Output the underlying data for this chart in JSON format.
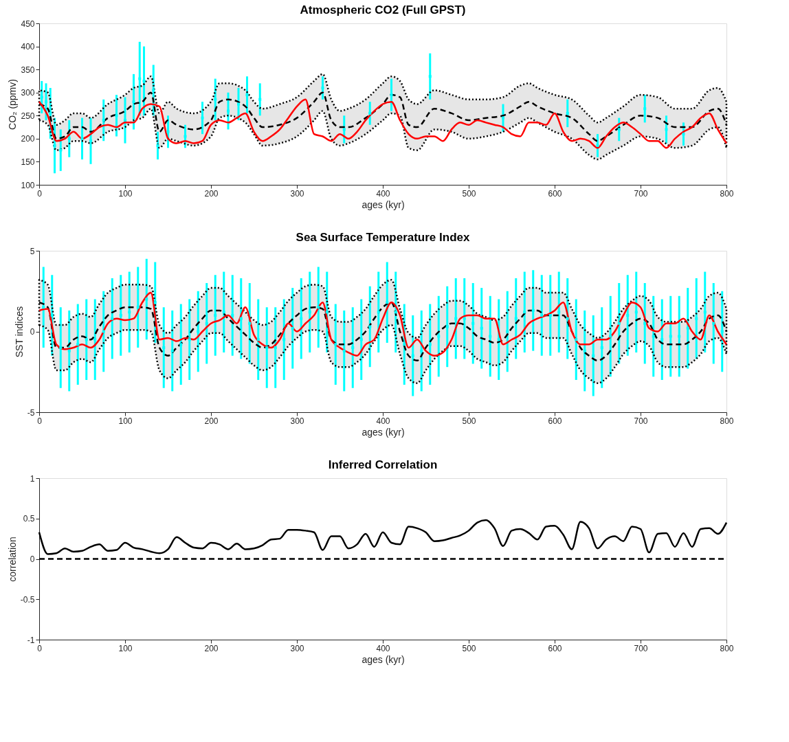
{
  "chart_data": [
    {
      "type": "line",
      "title": "Atmospheric CO2 (Full GPST)",
      "xlabel": "ages (kyr)",
      "ylabel": "CO₂ (ppmv)",
      "xlim": [
        0,
        800
      ],
      "xticks": [
        0,
        100,
        200,
        300,
        400,
        500,
        600,
        700,
        800
      ],
      "ylim": [
        100,
        450
      ],
      "yticks": [
        100,
        150,
        200,
        250,
        300,
        350,
        400,
        450
      ],
      "grid": false,
      "x": [
        0,
        10,
        20,
        30,
        40,
        50,
        60,
        70,
        80,
        90,
        100,
        110,
        120,
        130,
        140,
        150,
        160,
        170,
        180,
        190,
        200,
        210,
        220,
        230,
        240,
        250,
        260,
        270,
        280,
        290,
        300,
        310,
        320,
        330,
        340,
        350,
        360,
        370,
        380,
        390,
        400,
        410,
        420,
        430,
        440,
        450,
        460,
        470,
        480,
        490,
        500,
        510,
        520,
        530,
        540,
        550,
        560,
        570,
        580,
        590,
        600,
        610,
        620,
        630,
        640,
        650,
        660,
        670,
        680,
        690,
        700,
        710,
        720,
        730,
        740,
        750,
        760,
        770,
        780,
        790,
        800
      ],
      "series": [
        {
          "type": "line",
          "color": "#000000",
          "line_style": "dashed",
          "x": [
            0,
            10,
            20,
            30,
            40,
            50,
            60,
            80,
            100,
            110,
            120,
            130,
            140,
            150,
            160,
            180,
            200,
            210,
            220,
            240,
            250,
            260,
            280,
            300,
            320,
            330,
            340,
            350,
            360,
            380,
            400,
            410,
            420,
            430,
            440,
            460,
            480,
            500,
            520,
            540,
            560,
            570,
            580,
            600,
            620,
            640,
            650,
            660,
            680,
            700,
            720,
            740,
            760,
            780,
            790,
            800
          ],
          "values": [
            275,
            265,
            200,
            205,
            225,
            225,
            215,
            245,
            260,
            275,
            280,
            300,
            215,
            240,
            230,
            220,
            240,
            280,
            285,
            270,
            245,
            225,
            230,
            245,
            280,
            300,
            240,
            225,
            225,
            245,
            275,
            295,
            290,
            230,
            225,
            265,
            255,
            240,
            245,
            250,
            270,
            280,
            270,
            255,
            245,
            210,
            195,
            205,
            230,
            250,
            245,
            225,
            225,
            260,
            265,
            230
          ],
          "lower": [
            240,
            230,
            175,
            180,
            195,
            195,
            190,
            215,
            225,
            240,
            245,
            265,
            180,
            200,
            195,
            185,
            205,
            245,
            250,
            235,
            210,
            185,
            190,
            205,
            240,
            260,
            200,
            185,
            190,
            210,
            240,
            255,
            250,
            180,
            175,
            220,
            215,
            200,
            205,
            215,
            235,
            245,
            235,
            215,
            200,
            165,
            155,
            165,
            185,
            205,
            200,
            180,
            185,
            220,
            225,
            180
          ],
          "upper": [
            305,
            300,
            230,
            240,
            255,
            255,
            245,
            275,
            295,
            310,
            315,
            335,
            255,
            280,
            265,
            255,
            280,
            320,
            320,
            305,
            280,
            265,
            275,
            290,
            325,
            340,
            285,
            260,
            265,
            285,
            320,
            335,
            325,
            285,
            275,
            305,
            295,
            285,
            285,
            290,
            315,
            320,
            310,
            295,
            285,
            250,
            235,
            245,
            270,
            295,
            290,
            265,
            265,
            305,
            310,
            280
          ]
        },
        {
          "type": "line",
          "color": "#ff0000",
          "line_style": "solid",
          "values": [
            280,
            250,
            195,
            200,
            215,
            200,
            210,
            225,
            230,
            225,
            235,
            235,
            265,
            275,
            270,
            200,
            190,
            195,
            190,
            195,
            230,
            240,
            235,
            245,
            255,
            215,
            195,
            205,
            220,
            245,
            270,
            285,
            210,
            205,
            195,
            210,
            200,
            215,
            240,
            260,
            275,
            280,
            240,
            210,
            200,
            205,
            205,
            195,
            220,
            235,
            230,
            240,
            235,
            230,
            225,
            210,
            205,
            235,
            235,
            230,
            255,
            215,
            195,
            200,
            195,
            180,
            205,
            225,
            235,
            225,
            210,
            195,
            195,
            180,
            200,
            215,
            225,
            245,
            255,
            220,
            190
          ]
        },
        {
          "type": "scatter",
          "color": "#00ffff",
          "marker": "square",
          "x": [
            3,
            8,
            13,
            18,
            25,
            35,
            50,
            60,
            75,
            90,
            100,
            110,
            117,
            122,
            133,
            138,
            150,
            170,
            190,
            205,
            220,
            232,
            242,
            257,
            330,
            355,
            385,
            410,
            455,
            540,
            615,
            650,
            675,
            705,
            730,
            750
          ],
          "values": [
            290,
            280,
            255,
            185,
            175,
            200,
            200,
            195,
            240,
            250,
            240,
            280,
            330,
            325,
            305,
            185,
            215,
            205,
            245,
            285,
            260,
            275,
            295,
            285,
            310,
            220,
            255,
            295,
            335,
            245,
            255,
            185,
            220,
            265,
            220,
            210
          ],
          "errors": [
            35,
            40,
            55,
            60,
            45,
            40,
            45,
            50,
            45,
            45,
            50,
            60,
            80,
            75,
            55,
            30,
            35,
            25,
            35,
            45,
            40,
            35,
            40,
            35,
            25,
            30,
            25,
            35,
            50,
            30,
            30,
            25,
            25,
            30,
            30,
            25
          ]
        }
      ]
    },
    {
      "type": "line",
      "title": "Sea Surface Temperature Index",
      "xlabel": "ages (kyr)",
      "ylabel": "SST indices",
      "xlim": [
        0,
        800
      ],
      "xticks": [
        0,
        100,
        200,
        300,
        400,
        500,
        600,
        700,
        800
      ],
      "ylim": [
        -5,
        5
      ],
      "yticks": [
        -5,
        0,
        5
      ],
      "grid": false,
      "x": [
        0,
        10,
        20,
        30,
        40,
        50,
        60,
        70,
        80,
        90,
        100,
        110,
        120,
        130,
        140,
        150,
        160,
        170,
        180,
        190,
        200,
        210,
        220,
        230,
        240,
        250,
        260,
        270,
        280,
        290,
        300,
        310,
        320,
        330,
        340,
        350,
        360,
        370,
        380,
        390,
        400,
        410,
        420,
        430,
        440,
        450,
        460,
        470,
        480,
        490,
        500,
        510,
        520,
        530,
        540,
        550,
        560,
        570,
        580,
        590,
        600,
        610,
        620,
        630,
        640,
        650,
        660,
        670,
        680,
        690,
        700,
        710,
        720,
        730,
        740,
        750,
        760,
        770,
        780,
        790,
        800
      ],
      "series": [
        {
          "type": "line",
          "color": "#000000",
          "line_style": "dashed",
          "values": [
            1.8,
            1.5,
            -1.0,
            -1.0,
            -0.5,
            -0.3,
            -0.5,
            0.3,
            1.0,
            1.3,
            1.5,
            1.5,
            1.5,
            1.4,
            -1.0,
            -1.5,
            -1.0,
            -0.5,
            0.2,
            0.8,
            1.3,
            1.3,
            0.8,
            0.3,
            -0.2,
            -0.7,
            -1.0,
            -0.8,
            -0.2,
            0.5,
            1.0,
            1.4,
            1.5,
            1.4,
            -0.5,
            -0.8,
            -0.8,
            -0.5,
            0.0,
            0.8,
            1.5,
            1.8,
            0.0,
            -1.5,
            -1.8,
            -1.0,
            -0.3,
            0.2,
            0.5,
            0.5,
            0.2,
            -0.3,
            -0.5,
            -0.7,
            -0.5,
            0.2,
            0.8,
            1.3,
            1.3,
            1.0,
            1.0,
            1.0,
            0.0,
            -1.0,
            -1.5,
            -1.8,
            -1.5,
            -0.8,
            0.0,
            0.5,
            0.8,
            0.5,
            -0.5,
            -0.8,
            -0.8,
            -0.8,
            -0.5,
            0.0,
            0.8,
            1.0,
            0.0
          ],
          "lower": [
            0.4,
            0.1,
            -2.4,
            -2.4,
            -1.9,
            -1.7,
            -1.9,
            -1.1,
            -0.4,
            -0.1,
            0.1,
            0.1,
            0.1,
            0.0,
            -2.4,
            -2.9,
            -2.4,
            -1.9,
            -1.2,
            -0.6,
            -0.1,
            -0.1,
            -0.6,
            -1.1,
            -1.6,
            -2.1,
            -2.4,
            -2.2,
            -1.6,
            -0.9,
            -0.4,
            0.0,
            0.1,
            0.0,
            -1.9,
            -2.2,
            -2.2,
            -1.9,
            -1.4,
            -0.6,
            0.1,
            0.4,
            -1.4,
            -2.9,
            -3.2,
            -2.4,
            -1.7,
            -1.2,
            -0.9,
            -0.9,
            -1.2,
            -1.7,
            -1.9,
            -2.1,
            -1.9,
            -1.2,
            -0.6,
            -0.1,
            -0.1,
            -0.4,
            -0.4,
            -0.4,
            -1.4,
            -2.4,
            -2.9,
            -3.2,
            -2.9,
            -2.2,
            -1.4,
            -0.9,
            -0.6,
            -0.9,
            -1.9,
            -2.2,
            -2.2,
            -2.2,
            -1.9,
            -1.4,
            -0.6,
            -0.4,
            -1.4
          ],
          "upper": [
            3.2,
            2.9,
            0.4,
            0.4,
            0.9,
            1.1,
            0.9,
            1.7,
            2.4,
            2.7,
            2.9,
            2.9,
            2.9,
            2.8,
            0.4,
            -0.1,
            0.4,
            0.9,
            1.6,
            2.2,
            2.7,
            2.7,
            2.2,
            1.7,
            1.2,
            0.7,
            0.4,
            0.6,
            1.2,
            1.9,
            2.4,
            2.8,
            2.9,
            2.8,
            0.9,
            0.6,
            0.6,
            0.9,
            1.4,
            2.2,
            2.9,
            3.2,
            1.4,
            -0.1,
            -0.4,
            0.4,
            1.1,
            1.6,
            1.9,
            1.9,
            1.6,
            1.1,
            0.9,
            0.7,
            0.9,
            1.6,
            2.2,
            2.7,
            2.7,
            2.4,
            2.4,
            2.4,
            1.4,
            0.4,
            -0.1,
            -0.4,
            -0.1,
            0.6,
            1.4,
            1.9,
            2.2,
            1.9,
            0.9,
            0.6,
            0.6,
            0.6,
            0.9,
            1.4,
            2.2,
            2.4,
            1.4
          ]
        },
        {
          "type": "line",
          "color": "#ff0000",
          "line_style": "solid",
          "values": [
            1.3,
            1.4,
            -0.8,
            -1.1,
            -1.0,
            -0.8,
            -1.0,
            -0.5,
            0.5,
            0.8,
            0.7,
            0.8,
            1.8,
            2.4,
            -0.5,
            -0.4,
            -0.6,
            -0.4,
            -0.5,
            0.0,
            0.5,
            0.7,
            1.0,
            0.5,
            1.5,
            -0.2,
            -0.8,
            -1.0,
            -0.5,
            0.5,
            0.0,
            0.5,
            1.0,
            1.8,
            -0.5,
            -1.0,
            -1.3,
            -1.5,
            -0.8,
            -0.5,
            0.8,
            1.8,
            1.0,
            -1.0,
            -0.5,
            -1.2,
            -1.5,
            -1.3,
            -0.5,
            0.8,
            1.0,
            1.0,
            0.8,
            0.8,
            -0.8,
            -0.5,
            -0.2,
            0.5,
            0.8,
            1.0,
            1.3,
            1.8,
            0.0,
            -0.8,
            -0.8,
            -0.5,
            -0.5,
            0.0,
            1.0,
            1.8,
            1.5,
            0.2,
            0.0,
            0.5,
            0.5,
            0.8,
            0.0,
            -0.5,
            1.0,
            0.0,
            -0.8
          ]
        },
        {
          "type": "scatter",
          "color": "#00ffff",
          "marker": "square",
          "x": [
            5,
            15,
            25,
            35,
            45,
            55,
            65,
            75,
            85,
            95,
            105,
            115,
            125,
            135,
            145,
            155,
            165,
            175,
            185,
            195,
            205,
            215,
            225,
            235,
            245,
            255,
            265,
            275,
            285,
            295,
            305,
            315,
            325,
            335,
            345,
            355,
            365,
            375,
            385,
            395,
            405,
            415,
            425,
            435,
            445,
            455,
            465,
            475,
            485,
            495,
            505,
            515,
            525,
            535,
            545,
            555,
            565,
            575,
            585,
            595,
            605,
            615,
            625,
            635,
            645,
            655,
            665,
            675,
            685,
            695,
            705,
            715,
            725,
            735,
            745,
            755,
            765,
            775,
            785,
            795
          ],
          "values": [
            1.5,
            1.0,
            -1.0,
            -1.2,
            -0.8,
            -0.5,
            -0.5,
            0.0,
            0.8,
            1.0,
            1.2,
            1.5,
            2.0,
            1.8,
            -1.0,
            -1.2,
            -0.8,
            -0.5,
            0.0,
            0.5,
            1.0,
            1.2,
            1.0,
            0.8,
            0.5,
            -0.5,
            -1.0,
            -1.0,
            -0.5,
            0.2,
            0.8,
            1.2,
            1.5,
            1.2,
            -0.8,
            -1.2,
            -1.0,
            -0.5,
            0.3,
            1.2,
            1.8,
            1.2,
            -0.8,
            -1.5,
            -1.2,
            -0.8,
            -0.3,
            0.3,
            0.8,
            0.8,
            0.5,
            0.2,
            -0.3,
            -0.5,
            0.0,
            0.8,
            1.2,
            1.3,
            1.0,
            1.0,
            1.2,
            0.8,
            -0.5,
            -1.2,
            -1.5,
            -1.0,
            -0.3,
            0.5,
            1.0,
            1.2,
            0.5,
            -0.3,
            -0.5,
            -0.3,
            -0.3,
            0.2,
            0.8,
            1.2,
            0.5,
            0.0
          ],
          "errors": [
            2.5,
            2.5,
            2.5,
            2.5,
            2.5,
            2.5,
            2.5,
            2.5,
            2.5,
            2.5,
            2.5,
            2.5,
            2.5,
            2.5,
            2.5,
            2.5,
            2.5,
            2.5,
            2.5,
            2.5,
            2.5,
            2.5,
            2.5,
            2.5,
            2.5,
            2.5,
            2.5,
            2.5,
            2.5,
            2.5,
            2.5,
            2.5,
            2.5,
            2.5,
            2.5,
            2.5,
            2.5,
            2.5,
            2.5,
            2.5,
            2.5,
            2.5,
            2.5,
            2.5,
            2.5,
            2.5,
            2.5,
            2.5,
            2.5,
            2.5,
            2.5,
            2.5,
            2.5,
            2.5,
            2.5,
            2.5,
            2.5,
            2.5,
            2.5,
            2.5,
            2.5,
            2.5,
            2.5,
            2.5,
            2.5,
            2.5,
            2.5,
            2.5,
            2.5,
            2.5,
            2.5,
            2.5,
            2.5,
            2.5,
            2.5,
            2.5,
            2.5,
            2.5,
            2.5,
            2.5
          ]
        }
      ]
    },
    {
      "type": "line",
      "title": "Inferred Correlation",
      "xlabel": "ages (kyr)",
      "ylabel": "correlation",
      "xlim": [
        0,
        800
      ],
      "xticks": [
        0,
        100,
        200,
        300,
        400,
        500,
        600,
        700,
        800
      ],
      "ylim": [
        -1,
        1
      ],
      "yticks": [
        -1,
        -0.5,
        0,
        0.5,
        1
      ],
      "grid": false,
      "x": [
        0,
        10,
        20,
        30,
        40,
        50,
        60,
        70,
        80,
        90,
        100,
        110,
        120,
        130,
        140,
        150,
        160,
        170,
        180,
        190,
        200,
        210,
        220,
        230,
        240,
        250,
        260,
        270,
        280,
        290,
        300,
        310,
        320,
        330,
        340,
        350,
        360,
        370,
        380,
        390,
        400,
        410,
        420,
        430,
        440,
        450,
        460,
        470,
        480,
        490,
        500,
        510,
        520,
        530,
        540,
        550,
        560,
        570,
        580,
        590,
        600,
        610,
        620,
        630,
        640,
        650,
        660,
        670,
        680,
        690,
        700,
        710,
        720,
        730,
        740,
        750,
        760,
        770,
        780,
        790,
        800
      ],
      "series": [
        {
          "type": "line",
          "color": "#000000",
          "line_style": "solid",
          "values": [
            0.33,
            0.06,
            0.07,
            0.13,
            0.09,
            0.1,
            0.15,
            0.18,
            0.1,
            0.11,
            0.2,
            0.14,
            0.12,
            0.09,
            0.07,
            0.12,
            0.27,
            0.2,
            0.14,
            0.13,
            0.2,
            0.18,
            0.12,
            0.19,
            0.12,
            0.13,
            0.17,
            0.24,
            0.25,
            0.36,
            0.36,
            0.35,
            0.33,
            0.11,
            0.28,
            0.28,
            0.13,
            0.18,
            0.31,
            0.15,
            0.33,
            0.2,
            0.18,
            0.4,
            0.38,
            0.33,
            0.22,
            0.23,
            0.26,
            0.29,
            0.35,
            0.45,
            0.48,
            0.38,
            0.16,
            0.35,
            0.37,
            0.32,
            0.24,
            0.4,
            0.41,
            0.3,
            0.12,
            0.46,
            0.38,
            0.13,
            0.24,
            0.28,
            0.22,
            0.4,
            0.37,
            0.08,
            0.31,
            0.32,
            0.15,
            0.32,
            0.15,
            0.37,
            0.38,
            0.31,
            0.45
          ]
        }
      ],
      "ref_lines": [
        {
          "axis": "y",
          "value": 0,
          "color": "#000000",
          "line_style": "dashed"
        }
      ]
    }
  ]
}
